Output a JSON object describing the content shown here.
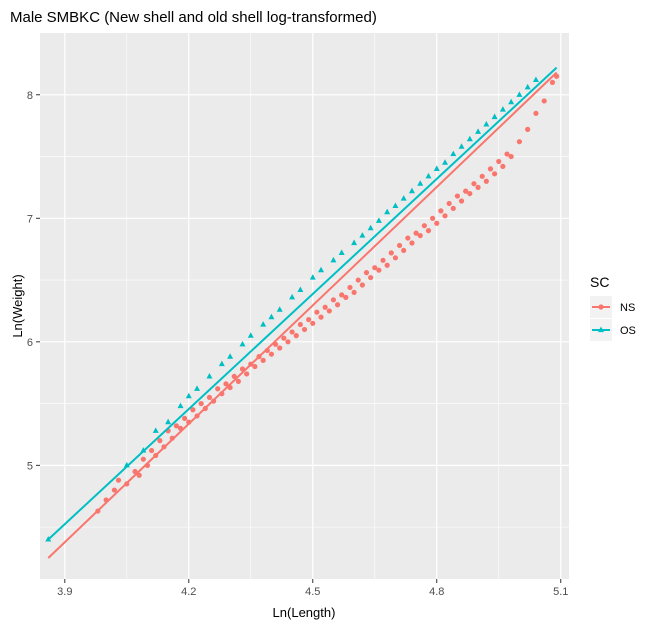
{
  "chart_data": {
    "type": "scatter",
    "title": "Male SMBKC (New shell and old shell log-transformed)",
    "xlabel": "Ln(Length)",
    "ylabel": "Ln(Weight)",
    "xlim": [
      3.84,
      5.12
    ],
    "ylim": [
      4.08,
      8.5
    ],
    "xticks": [
      3.9,
      4.2,
      4.5,
      4.8,
      5.1
    ],
    "yticks": [
      5,
      6,
      7,
      8
    ],
    "grid": true,
    "legend": {
      "title": "SC",
      "position": "right"
    },
    "series": [
      {
        "name": "NS",
        "color": "#F8766D",
        "marker": "circle",
        "fit": {
          "x": [
            3.86,
            5.09
          ],
          "y": [
            4.25,
            8.18
          ]
        },
        "points": [
          [
            3.98,
            4.63
          ],
          [
            4.0,
            4.72
          ],
          [
            4.02,
            4.8
          ],
          [
            4.03,
            4.88
          ],
          [
            4.05,
            4.85
          ],
          [
            4.07,
            4.95
          ],
          [
            4.08,
            4.92
          ],
          [
            4.09,
            5.05
          ],
          [
            4.1,
            5.0
          ],
          [
            4.11,
            5.12
          ],
          [
            4.12,
            5.08
          ],
          [
            4.13,
            5.2
          ],
          [
            4.14,
            5.15
          ],
          [
            4.15,
            5.28
          ],
          [
            4.16,
            5.22
          ],
          [
            4.17,
            5.32
          ],
          [
            4.18,
            5.3
          ],
          [
            4.19,
            5.38
          ],
          [
            4.2,
            5.35
          ],
          [
            4.21,
            5.45
          ],
          [
            4.22,
            5.4
          ],
          [
            4.23,
            5.5
          ],
          [
            4.24,
            5.46
          ],
          [
            4.25,
            5.55
          ],
          [
            4.26,
            5.52
          ],
          [
            4.27,
            5.62
          ],
          [
            4.28,
            5.58
          ],
          [
            4.29,
            5.66
          ],
          [
            4.3,
            5.63
          ],
          [
            4.31,
            5.72
          ],
          [
            4.32,
            5.68
          ],
          [
            4.33,
            5.78
          ],
          [
            4.34,
            5.74
          ],
          [
            4.35,
            5.82
          ],
          [
            4.36,
            5.8
          ],
          [
            4.37,
            5.88
          ],
          [
            4.38,
            5.85
          ],
          [
            4.39,
            5.93
          ],
          [
            4.4,
            5.9
          ],
          [
            4.41,
            5.98
          ],
          [
            4.42,
            5.95
          ],
          [
            4.43,
            6.03
          ],
          [
            4.44,
            6.0
          ],
          [
            4.45,
            6.08
          ],
          [
            4.46,
            6.05
          ],
          [
            4.47,
            6.14
          ],
          [
            4.48,
            6.1
          ],
          [
            4.49,
            6.18
          ],
          [
            4.5,
            6.15
          ],
          [
            4.51,
            6.24
          ],
          [
            4.52,
            6.2
          ],
          [
            4.53,
            6.28
          ],
          [
            4.54,
            6.25
          ],
          [
            4.55,
            6.34
          ],
          [
            4.56,
            6.3
          ],
          [
            4.57,
            6.38
          ],
          [
            4.58,
            6.36
          ],
          [
            4.59,
            6.44
          ],
          [
            4.6,
            6.4
          ],
          [
            4.61,
            6.5
          ],
          [
            4.62,
            6.46
          ],
          [
            4.63,
            6.56
          ],
          [
            4.64,
            6.52
          ],
          [
            4.65,
            6.6
          ],
          [
            4.66,
            6.58
          ],
          [
            4.67,
            6.66
          ],
          [
            4.68,
            6.62
          ],
          [
            4.69,
            6.72
          ],
          [
            4.7,
            6.68
          ],
          [
            4.71,
            6.78
          ],
          [
            4.72,
            6.74
          ],
          [
            4.73,
            6.84
          ],
          [
            4.74,
            6.8
          ],
          [
            4.75,
            6.88
          ],
          [
            4.76,
            6.86
          ],
          [
            4.77,
            6.94
          ],
          [
            4.78,
            6.9
          ],
          [
            4.79,
            7.0
          ],
          [
            4.8,
            6.96
          ],
          [
            4.81,
            7.06
          ],
          [
            4.82,
            7.02
          ],
          [
            4.83,
            7.12
          ],
          [
            4.84,
            7.08
          ],
          [
            4.85,
            7.18
          ],
          [
            4.86,
            7.14
          ],
          [
            4.87,
            7.22
          ],
          [
            4.88,
            7.2
          ],
          [
            4.89,
            7.28
          ],
          [
            4.9,
            7.25
          ],
          [
            4.91,
            7.34
          ],
          [
            4.92,
            7.3
          ],
          [
            4.93,
            7.4
          ],
          [
            4.94,
            7.36
          ],
          [
            4.95,
            7.46
          ],
          [
            4.96,
            7.42
          ],
          [
            4.97,
            7.52
          ],
          [
            4.98,
            7.5
          ],
          [
            5.0,
            7.62
          ],
          [
            5.02,
            7.72
          ],
          [
            5.04,
            7.85
          ],
          [
            5.06,
            7.95
          ],
          [
            5.08,
            8.1
          ],
          [
            5.09,
            8.15
          ]
        ]
      },
      {
        "name": "OS",
        "color": "#00BFC4",
        "marker": "triangle",
        "fit": {
          "x": [
            3.86,
            5.09
          ],
          "y": [
            4.4,
            8.22
          ]
        },
        "points": [
          [
            3.86,
            4.4
          ],
          [
            4.05,
            5.0
          ],
          [
            4.09,
            5.12
          ],
          [
            4.12,
            5.28
          ],
          [
            4.15,
            5.35
          ],
          [
            4.18,
            5.48
          ],
          [
            4.2,
            5.56
          ],
          [
            4.22,
            5.62
          ],
          [
            4.25,
            5.72
          ],
          [
            4.28,
            5.82
          ],
          [
            4.3,
            5.88
          ],
          [
            4.33,
            5.98
          ],
          [
            4.35,
            6.05
          ],
          [
            4.38,
            6.14
          ],
          [
            4.4,
            6.2
          ],
          [
            4.42,
            6.26
          ],
          [
            4.45,
            6.36
          ],
          [
            4.47,
            6.42
          ],
          [
            4.5,
            6.52
          ],
          [
            4.52,
            6.58
          ],
          [
            4.55,
            6.66
          ],
          [
            4.57,
            6.72
          ],
          [
            4.6,
            6.8
          ],
          [
            4.62,
            6.86
          ],
          [
            4.64,
            6.92
          ],
          [
            4.66,
            6.98
          ],
          [
            4.68,
            7.05
          ],
          [
            4.7,
            7.1
          ],
          [
            4.72,
            7.16
          ],
          [
            4.74,
            7.22
          ],
          [
            4.76,
            7.28
          ],
          [
            4.78,
            7.34
          ],
          [
            4.8,
            7.4
          ],
          [
            4.82,
            7.45
          ],
          [
            4.84,
            7.52
          ],
          [
            4.86,
            7.58
          ],
          [
            4.88,
            7.64
          ],
          [
            4.9,
            7.7
          ],
          [
            4.92,
            7.76
          ],
          [
            4.94,
            7.82
          ],
          [
            4.96,
            7.88
          ],
          [
            4.98,
            7.94
          ],
          [
            5.0,
            8.0
          ],
          [
            5.02,
            8.06
          ],
          [
            5.04,
            8.12
          ]
        ]
      }
    ]
  }
}
